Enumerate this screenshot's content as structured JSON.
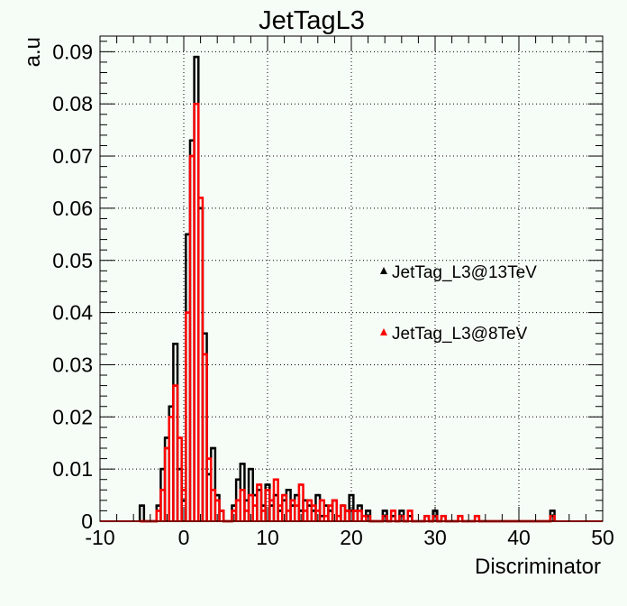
{
  "chart_data": {
    "type": "line",
    "title": "JetTagL3",
    "xlabel": "Discriminator",
    "ylabel": "a.u",
    "xlim": [
      -10,
      50
    ],
    "ylim": [
      0,
      0.093
    ],
    "xticks": [
      -10,
      0,
      10,
      20,
      30,
      40,
      50
    ],
    "xtick_labels": [
      "-10",
      "0",
      "10",
      "20",
      "30",
      "40",
      "50"
    ],
    "yticks": [
      0,
      0.01,
      0.02,
      0.03,
      0.04,
      0.05,
      0.06,
      0.07,
      0.08,
      0.09
    ],
    "ytick_labels": [
      "0",
      "0.01",
      "0.02",
      "0.03",
      "0.04",
      "0.05",
      "0.06",
      "0.07",
      "0.08",
      "0.09"
    ],
    "grid": true,
    "legend_position": "right-middle",
    "series": [
      {
        "name": "JetTag_L3@13TeV",
        "color": "#000000",
        "marker": "triangle",
        "x": [
          -5,
          -3,
          -2.5,
          -2,
          -1.5,
          -1,
          -0.5,
          0,
          0.5,
          1,
          1.5,
          2,
          2.5,
          3,
          3.5,
          4,
          4.5,
          6,
          6.5,
          7,
          7.5,
          8,
          8.5,
          9,
          9.5,
          10,
          10.5,
          11,
          11.5,
          12,
          12.5,
          13,
          13.5,
          14,
          14.5,
          15,
          15.5,
          16,
          16.5,
          17,
          17.5,
          18,
          18.5,
          19,
          19.5,
          20,
          20.5,
          21,
          21.5,
          22,
          24,
          25,
          26,
          27,
          29,
          30,
          31,
          33,
          35,
          44
        ],
        "y": [
          0.003,
          0.003,
          0.01,
          0.016,
          0.022,
          0.034,
          0.01,
          0.004,
          0.055,
          0.073,
          0.089,
          0.06,
          0.036,
          0.009,
          0.014,
          0.005,
          0.002,
          0.003,
          0.008,
          0.011,
          0.004,
          0.01,
          0.005,
          0.006,
          0.003,
          0.007,
          0.003,
          0.005,
          0.002,
          0.004,
          0.006,
          0.003,
          0.005,
          0.002,
          0.004,
          0.003,
          0.002,
          0.005,
          0.001,
          0.003,
          0.002,
          0.004,
          0.001,
          0.003,
          0.002,
          0.005,
          0.002,
          0.003,
          0.001,
          0.002,
          0.002,
          0.001,
          0.002,
          0.001,
          0.001,
          0.002,
          0.001,
          0.001,
          0.001,
          0.002
        ]
      },
      {
        "name": "JetTag_L3@8TeV",
        "color": "#ff0000",
        "marker": "triangle",
        "x": [
          -5,
          -3,
          -2.5,
          -2,
          -1.5,
          -1,
          -0.5,
          0,
          0.5,
          1,
          1.5,
          2,
          2.5,
          3,
          3.5,
          4,
          4.5,
          6,
          6.5,
          7,
          7.5,
          8,
          8.5,
          9,
          9.5,
          10,
          10.5,
          11,
          11.5,
          12,
          12.5,
          13,
          13.5,
          14,
          14.5,
          15,
          15.5,
          16,
          16.5,
          17,
          17.5,
          18,
          18.5,
          19,
          19.5,
          20,
          20.5,
          21,
          21.5,
          22,
          24,
          25,
          26,
          27,
          29,
          30,
          31,
          33,
          35,
          44
        ],
        "y": [
          0.0,
          0.002,
          0.006,
          0.014,
          0.02,
          0.026,
          0.016,
          0.006,
          0.04,
          0.07,
          0.08,
          0.062,
          0.032,
          0.012,
          0.006,
          0.004,
          0.002,
          0.002,
          0.004,
          0.006,
          0.002,
          0.005,
          0.003,
          0.007,
          0.002,
          0.006,
          0.004,
          0.008,
          0.003,
          0.005,
          0.002,
          0.004,
          0.003,
          0.007,
          0.002,
          0.004,
          0.003,
          0.002,
          0.004,
          0.001,
          0.003,
          0.004,
          0.001,
          0.003,
          0.002,
          0.002,
          0.002,
          0.002,
          0.001,
          0.001,
          0.001,
          0.002,
          0.001,
          0.002,
          0.001,
          0.001,
          0.001,
          0.001,
          0.001,
          0.001
        ]
      }
    ]
  }
}
